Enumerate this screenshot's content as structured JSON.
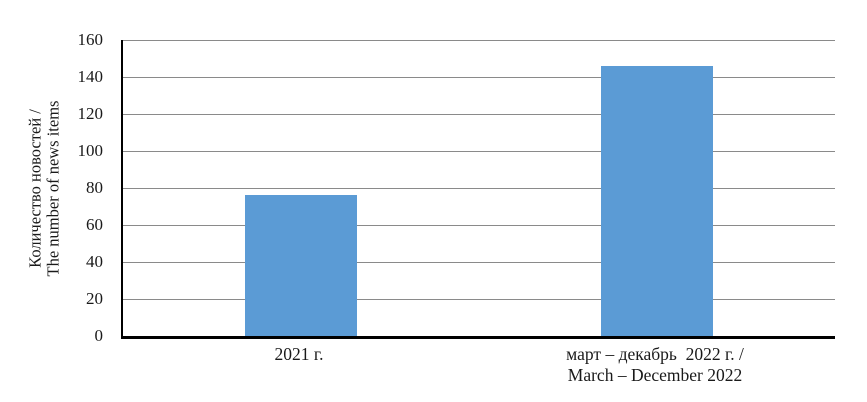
{
  "chart_data": {
    "type": "bar",
    "title": "",
    "categories": [
      "2021 г.",
      "март – декабрь  2022 г. /\nMarch – December 2022"
    ],
    "values": [
      76,
      146
    ],
    "ylabel": "Количество новостей /\nThe number of news items",
    "xlabel": "",
    "ylim": [
      0,
      160
    ],
    "ytick_step": 20,
    "yticks": [
      0,
      20,
      40,
      60,
      80,
      100,
      120,
      140,
      160
    ],
    "grid": "horizontal",
    "legend_position": "none",
    "bar_color": "#5B9BD5",
    "gridline_color": "#8A8A8A",
    "axis_color": "#000000",
    "background_color": "#FFFFFF",
    "text_color": "#1A1A1A"
  }
}
